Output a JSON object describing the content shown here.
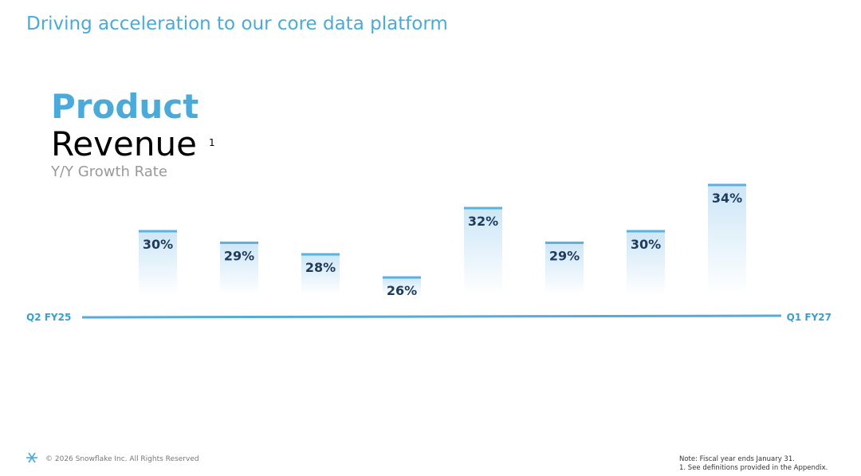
{
  "header": {
    "title": "Driving acceleration to our core data platform"
  },
  "chart_data": {
    "type": "bar",
    "title": "Product",
    "title_line2": "Revenue",
    "title_note": "1",
    "subtitle": "Y/Y Growth Rate",
    "categories": [
      "Q2 FY25",
      null,
      null,
      null,
      null,
      null,
      null,
      "Q1 FY27"
    ],
    "values": [
      30,
      29,
      28,
      26,
      32,
      29,
      30,
      34
    ],
    "value_labels": [
      "30%",
      "29%",
      "28%",
      "26%",
      "32%",
      "29%",
      "30%",
      "34%"
    ],
    "color": "#5ab2df"
  },
  "footer": {
    "copyright": "© 2026 Snowflake Inc. All Rights Reserved",
    "notes": [
      "Note: Fiscal year ends January 31.",
      "1. See definitions provided in the Appendix."
    ]
  }
}
